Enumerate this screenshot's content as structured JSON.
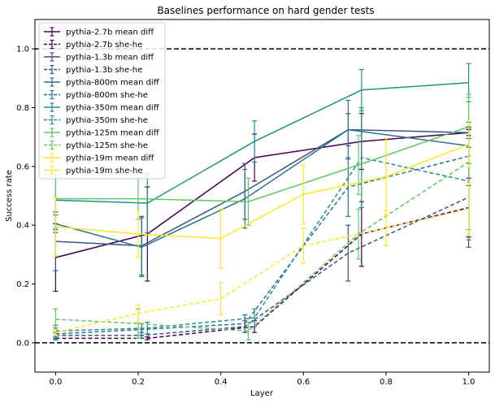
{
  "chart_data": {
    "type": "line",
    "title": "Baselines performance on hard gender tests",
    "xlabel": "Layer",
    "ylabel": "Success rate",
    "xlim": [
      -0.05,
      1.05
    ],
    "ylim": [
      -0.1,
      1.1
    ],
    "xticks": [
      "0.0",
      "0.2",
      "0.4",
      "0.6",
      "0.8",
      "1.0"
    ],
    "yticks": [
      "0.0",
      "0.2",
      "0.4",
      "0.6",
      "0.8",
      "1.0"
    ],
    "hlines": [
      0.0,
      1.0
    ],
    "legend_position": "upper-left",
    "series": [
      {
        "name": "pythia-2.7b mean diff",
        "color": "#440154",
        "dashed": false,
        "x": [
          0.0,
          0.2222,
          0.4815,
          0.7407,
          1.0
        ],
        "y": [
          0.29,
          0.37,
          0.63,
          0.685,
          0.715
        ],
        "err": [
          0.115,
          0.16,
          0.08,
          0.095,
          0.01
        ]
      },
      {
        "name": "pythia-2.7b she-he",
        "color": "#440154",
        "dashed": true,
        "x": [
          0.0,
          0.2222,
          0.4815,
          0.7407,
          1.0
        ],
        "y": [
          0.015,
          0.015,
          0.055,
          0.37,
          0.46
        ],
        "err": [
          0.005,
          0.005,
          0.02,
          0.11,
          0.1
        ]
      },
      {
        "name": "pythia-1.3b mean diff",
        "color": "#3b528b",
        "dashed": false,
        "x": [
          0.0,
          0.2083,
          0.4583,
          0.7083,
          1.0
        ],
        "y": [
          0.345,
          0.33,
          0.515,
          0.725,
          0.715
        ],
        "err": [
          0.1,
          0.1,
          0.095,
          0.055,
          0.02
        ]
      },
      {
        "name": "pythia-1.3b she-he",
        "color": "#3b528b",
        "dashed": true,
        "x": [
          0.0,
          0.2083,
          0.4583,
          0.7083,
          1.0
        ],
        "y": [
          0.025,
          0.025,
          0.055,
          0.305,
          0.495
        ],
        "err": [
          0.01,
          0.01,
          0.02,
          0.095,
          0.17
        ]
      },
      {
        "name": "pythia-800m mean diff",
        "color": "#2c728e",
        "dashed": false,
        "x": [
          0.0,
          0.2083,
          0.4583,
          0.7083,
          1.0
        ],
        "y": [
          0.405,
          0.325,
          0.49,
          0.725,
          0.67
        ],
        "err": [
          0.03,
          0.1,
          0.1,
          0.1,
          0.06
        ]
      },
      {
        "name": "pythia-800m she-he",
        "color": "#2c728e",
        "dashed": true,
        "x": [
          0.0,
          0.2083,
          0.4583,
          0.7083,
          1.0
        ],
        "y": [
          0.03,
          0.045,
          0.065,
          0.53,
          0.635
        ],
        "err": [
          0.02,
          0.02,
          0.03,
          0.1,
          0.1
        ]
      },
      {
        "name": "pythia-350m mean diff",
        "color": "#21918c",
        "dashed": false,
        "x": [
          0.0,
          0.2222,
          0.4815,
          0.7407,
          1.0
        ],
        "y": [
          0.485,
          0.475,
          0.685,
          0.86,
          0.885
        ],
        "err": [
          0.1,
          0.1,
          0.07,
          0.07,
          0.065
        ]
      },
      {
        "name": "pythia-350m she-he",
        "color": "#21918c",
        "dashed": true,
        "x": [
          0.0,
          0.2222,
          0.4815,
          0.7407,
          1.0
        ],
        "y": [
          0.04,
          0.05,
          0.085,
          0.63,
          0.55
        ],
        "err": [
          0.02,
          0.02,
          0.03,
          0.17,
          0.2
        ]
      },
      {
        "name": "pythia-125m mean diff",
        "color": "#5ec962",
        "dashed": false,
        "x": [
          0.0,
          0.2,
          0.4667,
          0.7333,
          1.0
        ],
        "y": [
          0.49,
          0.49,
          0.48,
          0.605,
          0.735
        ],
        "err": [
          0.1,
          0.07,
          0.08,
          0.1,
          0.1
        ]
      },
      {
        "name": "pythia-125m she-he",
        "color": "#5ec962",
        "dashed": true,
        "x": [
          0.0,
          0.2,
          0.4667,
          0.7333,
          1.0
        ],
        "y": [
          0.08,
          0.065,
          0.04,
          0.37,
          0.615
        ],
        "err": [
          0.035,
          0.05,
          0.03,
          0.085,
          0.23
        ]
      },
      {
        "name": "pythia-19m mean diff",
        "color": "#fde725",
        "dashed": false,
        "x": [
          0.0,
          0.2,
          0.4,
          0.6,
          0.8,
          1.0
        ],
        "y": [
          0.395,
          0.37,
          0.355,
          0.505,
          0.565,
          0.675
        ],
        "err": [
          0.1,
          0.08,
          0.1,
          0.1,
          0.13,
          0.08
        ]
      },
      {
        "name": "pythia-19m she-he",
        "color": "#fde725",
        "dashed": true,
        "x": [
          0.0,
          0.2,
          0.4,
          0.6,
          0.8,
          1.0
        ],
        "y": [
          0.035,
          0.1,
          0.15,
          0.33,
          0.39,
          0.455
        ],
        "err": [
          0.01,
          0.03,
          0.055,
          0.06,
          0.06,
          0.09
        ]
      }
    ]
  }
}
